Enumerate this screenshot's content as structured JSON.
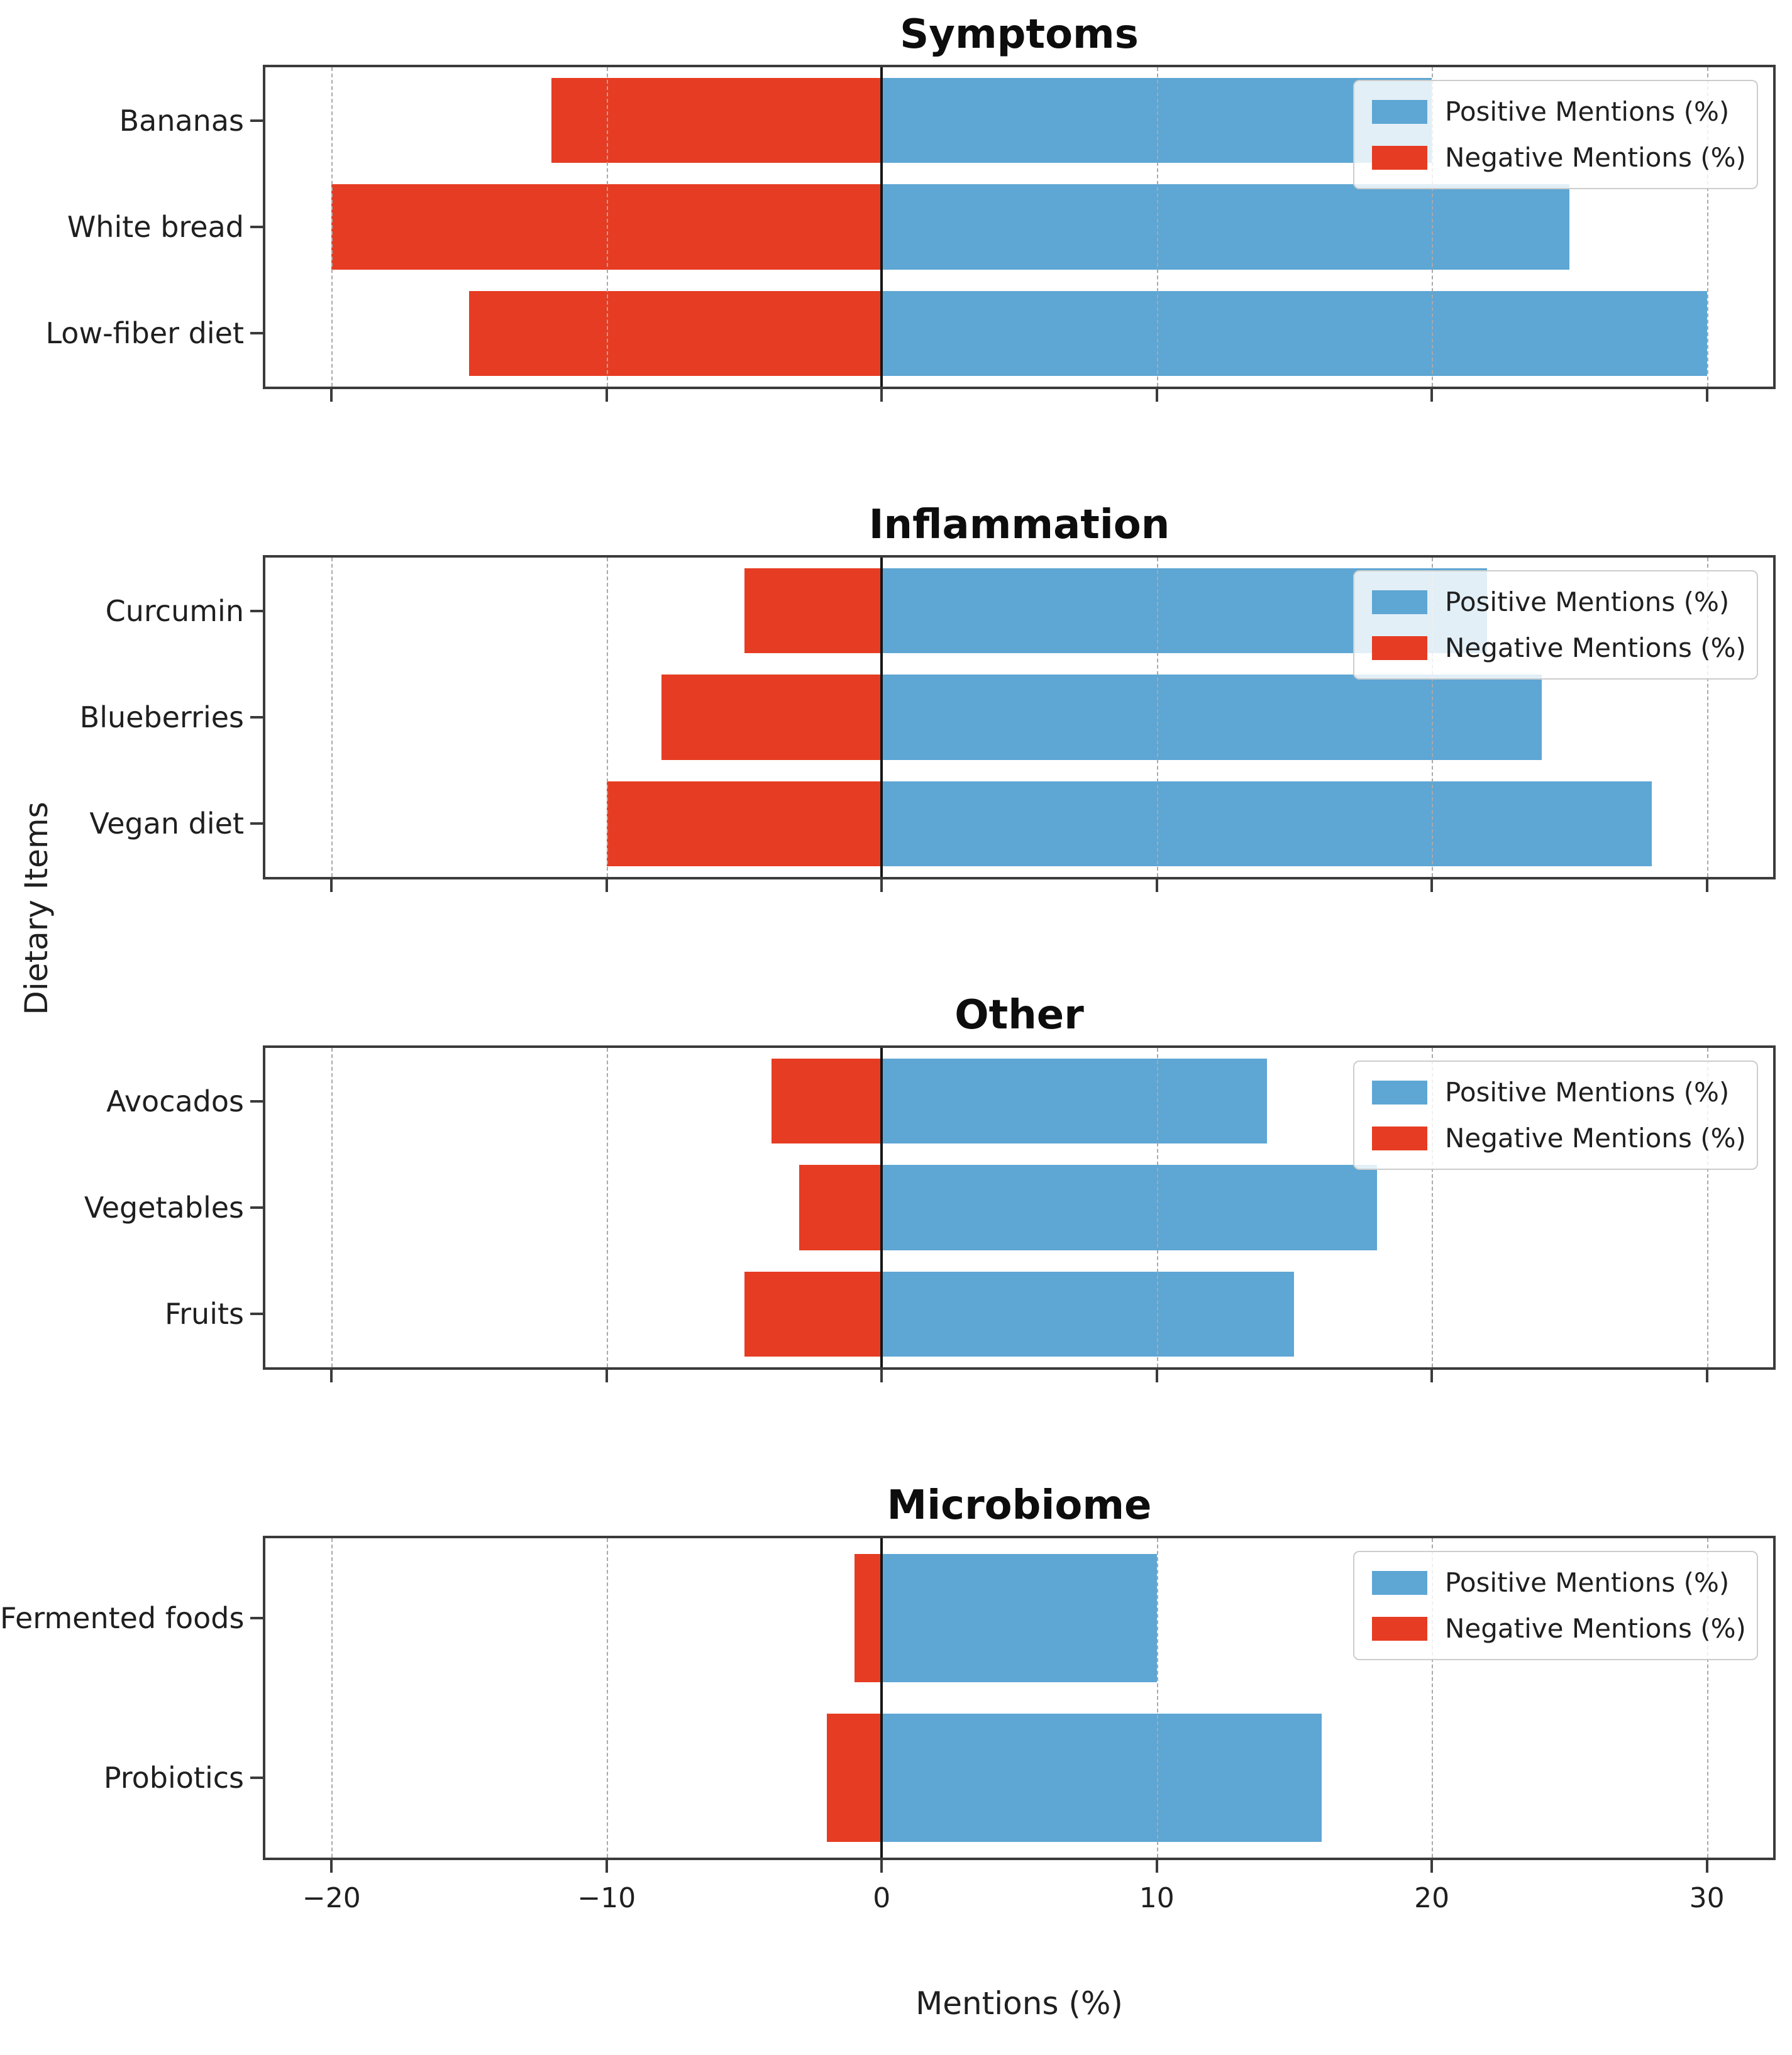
{
  "figure": {
    "xlabel": "Mentions (%)",
    "ylabel": "Dietary Items",
    "colors": {
      "positive": "#5ea6d4",
      "negative": "#e63c23"
    },
    "legend_labels": [
      "Positive Mentions (%)",
      "Negative Mentions (%)"
    ]
  },
  "x_axis": {
    "tick_values": [
      -20,
      -10,
      0,
      10,
      20,
      30
    ],
    "tick_labels": [
      "−20",
      "−10",
      "0",
      "10",
      "20",
      "30"
    ]
  },
  "chart_data": [
    {
      "type": "bar",
      "orientation": "horizontal",
      "title": "Symptoms",
      "categories": [
        "Bananas",
        "White bread",
        "Low-fiber diet"
      ],
      "series": [
        {
          "name": "Positive Mentions (%)",
          "values": [
            20,
            25,
            30
          ]
        },
        {
          "name": "Negative Mentions (%)",
          "values": [
            -12,
            -20,
            -15
          ]
        }
      ],
      "xlim": [
        -22.5,
        32.5
      ],
      "xticks": [
        -20,
        -10,
        0,
        10,
        20,
        30
      ],
      "grid": true,
      "legend_position": "upper right"
    },
    {
      "type": "bar",
      "orientation": "horizontal",
      "title": "Inflammation",
      "categories": [
        "Curcumin",
        "Blueberries",
        "Vegan diet"
      ],
      "series": [
        {
          "name": "Positive Mentions (%)",
          "values": [
            22,
            24,
            28
          ]
        },
        {
          "name": "Negative Mentions (%)",
          "values": [
            -5,
            -8,
            -10
          ]
        }
      ],
      "xlim": [
        -22.5,
        32.5
      ],
      "xticks": [
        -20,
        -10,
        0,
        10,
        20,
        30
      ],
      "grid": true,
      "legend_position": "upper right"
    },
    {
      "type": "bar",
      "orientation": "horizontal",
      "title": "Other",
      "categories": [
        "Avocados",
        "Vegetables",
        "Fruits"
      ],
      "series": [
        {
          "name": "Positive Mentions (%)",
          "values": [
            14,
            18,
            15
          ]
        },
        {
          "name": "Negative Mentions (%)",
          "values": [
            -4,
            -3,
            -5
          ]
        }
      ],
      "xlim": [
        -22.5,
        32.5
      ],
      "xticks": [
        -20,
        -10,
        0,
        10,
        20,
        30
      ],
      "grid": true,
      "legend_position": "upper right"
    },
    {
      "type": "bar",
      "orientation": "horizontal",
      "title": "Microbiome",
      "categories": [
        "Fermented foods",
        "Probiotics"
      ],
      "series": [
        {
          "name": "Positive Mentions (%)",
          "values": [
            10,
            16
          ]
        },
        {
          "name": "Negative Mentions (%)",
          "values": [
            -1,
            -2
          ]
        }
      ],
      "xlim": [
        -22.5,
        32.5
      ],
      "xticks": [
        -20,
        -10,
        0,
        10,
        20,
        30
      ],
      "grid": true,
      "legend_position": "upper right"
    }
  ]
}
